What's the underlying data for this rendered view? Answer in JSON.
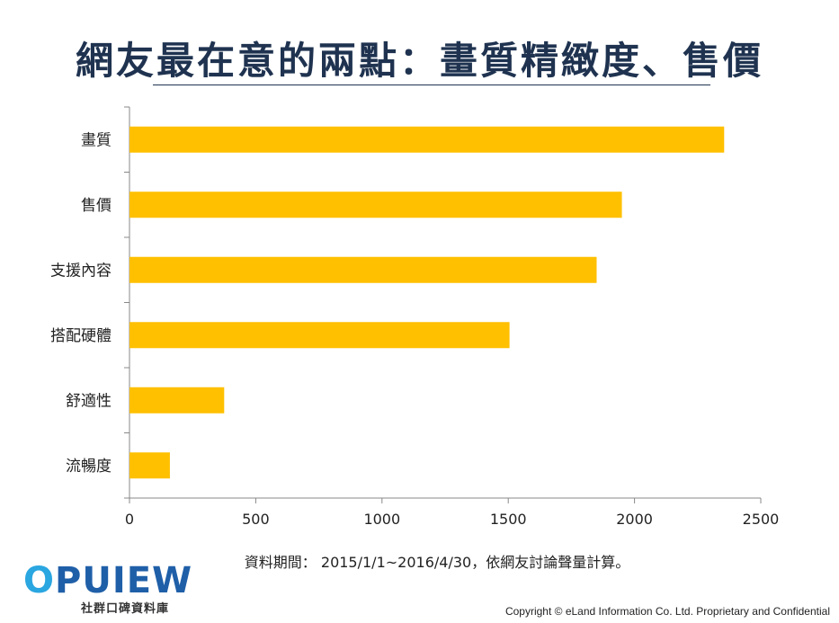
{
  "title": "網友最在意的兩點：畫質精緻度、售價",
  "note": "資料期間： 2015/1/1~2016/4/30，依網友討論聲量計算。",
  "logo": {
    "word_o": "O",
    "word_rest": "PUIEW",
    "subtitle": "社群口碑資料庫"
  },
  "copyright": "Copyright © eLand Information Co. Ltd. Proprietary and Confidential",
  "chart_data": {
    "type": "bar",
    "orientation": "horizontal",
    "categories": [
      "畫質",
      "售價",
      "支援內容",
      "搭配硬體",
      "舒適性",
      "流暢度"
    ],
    "values": [
      2355,
      1950,
      1850,
      1505,
      375,
      160
    ],
    "xlim": [
      0,
      2500
    ],
    "xticks": [
      0,
      500,
      1000,
      1500,
      2000,
      2500
    ],
    "grid": false,
    "bar_color": "#ffc000",
    "axis_color": "#888888"
  }
}
